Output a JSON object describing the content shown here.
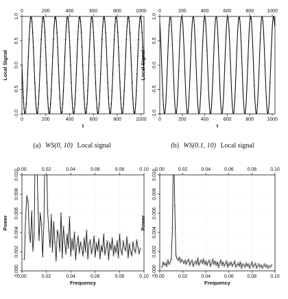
{
  "captions": [
    {
      "label": "(a)",
      "math": "WS(0, 10)",
      "text": "Local signal"
    },
    {
      "label": "(b)",
      "math": "WS(0.1, 10)",
      "text": "Local signal"
    }
  ],
  "chart_data": [
    {
      "id": "a",
      "type": "line",
      "xlabel": "t",
      "ylabel": "Local Signal",
      "xlim": [
        0,
        1024
      ],
      "ylim": [
        -1.0,
        1.0
      ],
      "xticks": [
        0,
        200,
        400,
        600,
        800,
        1000
      ],
      "yticks": [
        -1.0,
        -0.5,
        0.0,
        0.5,
        1.0
      ],
      "ytick_labels": [
        "-1.0",
        "-0.5",
        "0.0",
        "0.5",
        "1.0"
      ],
      "xticks_top": [
        0,
        200,
        400,
        600,
        800,
        1000
      ],
      "grid": true,
      "signal": {
        "n": 1024,
        "period": 102,
        "amplitude": 1.0,
        "phase_deg": 90,
        "noise_sd": 0.0
      },
      "series": [
        {
          "values_desc": "cosine wave, period about 102 samples, dense black markers"
        }
      ]
    },
    {
      "id": "b",
      "type": "line",
      "xlabel": "t",
      "ylabel": "Local Signal",
      "xlim": [
        0,
        1024
      ],
      "ylim": [
        -1.0,
        1.0
      ],
      "xticks": [
        0,
        200,
        400,
        600,
        800,
        1000
      ],
      "yticks": [
        -1.0,
        -0.5,
        0.0,
        0.5,
        1.0
      ],
      "ytick_labels": [
        "-1.0",
        "-0.5",
        "0.0",
        "0.5",
        "1.0"
      ],
      "xticks_top": [
        0,
        200,
        400,
        600,
        800,
        1000
      ],
      "grid": true,
      "signal": {
        "n": 1024,
        "period": 102,
        "amplitude": 1.0,
        "phase_deg": 30,
        "noise_sd": 0.0
      },
      "series": [
        {
          "values_desc": "smooth sinusoid, period about 102 samples, sparse markers"
        }
      ]
    },
    {
      "id": "c",
      "type": "line",
      "xlabel": "Frequency",
      "ylabel": "Power",
      "xlim": [
        0,
        0.1
      ],
      "ylim": [
        0,
        0.01
      ],
      "xticks": [
        0.0,
        0.02,
        0.04,
        0.06,
        0.08,
        0.1
      ],
      "xtick_labels": [
        "0.00",
        "0.02",
        "0.04",
        "0.06",
        "0.08",
        "0.10"
      ],
      "xtick_labels_top": [
        "0.00",
        "0.02",
        "0.04",
        "0.06",
        "0.08",
        "0.10"
      ],
      "yticks": [
        0,
        0.002,
        0.004,
        0.006,
        0.008,
        0.01
      ],
      "ytick_labels": [
        "0.000",
        "0.002",
        "0.004",
        "0.006",
        "0.008",
        "0.010"
      ],
      "grid": true,
      "x": [
        0.002,
        0.003,
        0.004,
        0.005,
        0.006,
        0.007,
        0.008,
        0.009,
        0.01,
        0.011,
        0.012,
        0.013,
        0.014,
        0.015,
        0.016,
        0.017,
        0.018,
        0.019,
        0.02,
        0.021,
        0.022,
        0.023,
        0.024,
        0.025,
        0.026,
        0.027,
        0.028,
        0.029,
        0.03,
        0.031,
        0.032,
        0.033,
        0.034,
        0.035,
        0.036,
        0.037,
        0.038,
        0.039,
        0.04,
        0.041,
        0.042,
        0.043,
        0.044,
        0.045,
        0.046,
        0.047,
        0.048,
        0.049,
        0.05,
        0.051,
        0.052,
        0.053,
        0.054,
        0.055,
        0.056,
        0.057,
        0.058,
        0.059,
        0.06,
        0.061,
        0.062,
        0.063,
        0.064,
        0.065,
        0.066,
        0.067,
        0.068,
        0.069,
        0.07,
        0.071,
        0.072,
        0.073,
        0.074,
        0.075,
        0.076,
        0.077,
        0.078,
        0.079,
        0.08,
        0.081,
        0.082,
        0.083,
        0.084,
        0.085,
        0.086,
        0.087,
        0.088,
        0.089,
        0.09,
        0.091,
        0.092,
        0.093,
        0.094,
        0.095,
        0.096,
        0.097
      ],
      "series": [
        {
          "values": [
            0.0012,
            0.0055,
            0.0078,
            0.0072,
            0.004,
            0.003,
            0.0062,
            0.0021,
            0.0038,
            0.014,
            0.014,
            0.0075,
            0.0032,
            0.006,
            0.0048,
            0.0015,
            0.005,
            0.014,
            0.014,
            0.0063,
            0.0042,
            0.0025,
            0.0058,
            0.002,
            0.0051,
            0.003,
            0.0011,
            0.0042,
            0.0037,
            0.0021,
            0.006,
            0.0014,
            0.0046,
            0.003,
            0.0018,
            0.0038,
            0.0024,
            0.0056,
            0.0016,
            0.0033,
            0.0022,
            0.004,
            0.0012,
            0.0027,
            0.0036,
            0.0019,
            0.003,
            0.0024,
            0.0016,
            0.0034,
            0.002,
            0.0042,
            0.0013,
            0.0028,
            0.0032,
            0.0018,
            0.0024,
            0.0036,
            0.0015,
            0.0029,
            0.0021,
            0.0033,
            0.0013,
            0.0026,
            0.002,
            0.0038,
            0.0017,
            0.0024,
            0.0031,
            0.0012,
            0.0029,
            0.0022,
            0.0034,
            0.0016,
            0.0026,
            0.0019,
            0.0031,
            0.0014,
            0.0038,
            0.0022,
            0.0017,
            0.0031,
            0.0024,
            0.0021,
            0.0035,
            0.0014,
            0.0028,
            0.002,
            0.0016,
            0.003,
            0.0022,
            0.0019,
            0.0032,
            0.0025,
            0.0018,
            0.0023
          ]
        }
      ]
    },
    {
      "id": "d",
      "type": "line",
      "xlabel": "Frequency",
      "ylabel": "Power",
      "xlim": [
        0,
        0.1
      ],
      "ylim": [
        0,
        0.01
      ],
      "xticks": [
        0.0,
        0.02,
        0.04,
        0.06,
        0.08,
        0.1
      ],
      "xtick_labels": [
        "0.00",
        "0.02",
        "0.04",
        "0.06",
        "0.08",
        "0.10"
      ],
      "xtick_labels_top": [
        "0.00",
        "0.02",
        "0.04",
        "0.06",
        "0.08",
        "0.10"
      ],
      "yticks": [
        0,
        0.002,
        0.004,
        0.006,
        0.008,
        0.01
      ],
      "ytick_labels": [
        "0.000",
        "0.002",
        "0.004",
        "0.006",
        "0.008",
        "0.010"
      ],
      "grid": true,
      "x": [
        0.002,
        0.003,
        0.004,
        0.005,
        0.006,
        0.007,
        0.008,
        0.009,
        0.01,
        0.011,
        0.012,
        0.013,
        0.014,
        0.015,
        0.016,
        0.017,
        0.018,
        0.019,
        0.02,
        0.021,
        0.022,
        0.023,
        0.024,
        0.025,
        0.026,
        0.027,
        0.028,
        0.029,
        0.03,
        0.031,
        0.032,
        0.033,
        0.034,
        0.035,
        0.036,
        0.037,
        0.038,
        0.039,
        0.04,
        0.041,
        0.042,
        0.043,
        0.044,
        0.045,
        0.046,
        0.047,
        0.048,
        0.049,
        0.05,
        0.051,
        0.052,
        0.053,
        0.054,
        0.055,
        0.056,
        0.057,
        0.058,
        0.059,
        0.06,
        0.061,
        0.062,
        0.063,
        0.064,
        0.065,
        0.066,
        0.067,
        0.068,
        0.069,
        0.07,
        0.071,
        0.072,
        0.073,
        0.074,
        0.075,
        0.076,
        0.077,
        0.078,
        0.079,
        0.08,
        0.081,
        0.082,
        0.083,
        0.084,
        0.085,
        0.086,
        0.087,
        0.088,
        0.089,
        0.09,
        0.091,
        0.092,
        0.093,
        0.094,
        0.095,
        0.096,
        0.097
      ],
      "series": [
        {
          "values": [
            0.0004,
            0.0009,
            0.0006,
            0.0008,
            0.0005,
            0.0011,
            0.0007,
            0.0009,
            0.0012,
            0.0045,
            0.014,
            0.0068,
            0.0016,
            0.0013,
            0.0011,
            0.0014,
            0.0009,
            0.0012,
            0.001,
            0.0008,
            0.0011,
            0.0007,
            0.001,
            0.0012,
            0.0006,
            0.0009,
            0.0011,
            0.0005,
            0.0008,
            0.001,
            0.0007,
            0.0013,
            0.0006,
            0.0009,
            0.0011,
            0.0008,
            0.0012,
            0.0007,
            0.001,
            0.0006,
            0.0009,
            0.0011,
            0.0005,
            0.0008,
            0.0012,
            0.0007,
            0.001,
            0.0006,
            0.0009,
            0.0004,
            0.0008,
            0.0011,
            0.0006,
            0.0009,
            0.0005,
            0.0007,
            0.001,
            0.0004,
            0.0008,
            0.0006,
            0.0009,
            0.0005,
            0.0007,
            0.001,
            0.0004,
            0.0006,
            0.0008,
            0.0005,
            0.0009,
            0.0003,
            0.0007,
            0.0006,
            0.0004,
            0.0008,
            0.0005,
            0.0007,
            0.0003,
            0.0006,
            0.0009,
            0.0004,
            0.0006,
            0.0008,
            0.0003,
            0.0005,
            0.0007,
            0.0004,
            0.0006,
            0.0003,
            0.0005,
            0.0007,
            0.0004,
            0.0006,
            0.0003,
            0.0005,
            0.0004,
            0.0006
          ]
        }
      ]
    }
  ]
}
